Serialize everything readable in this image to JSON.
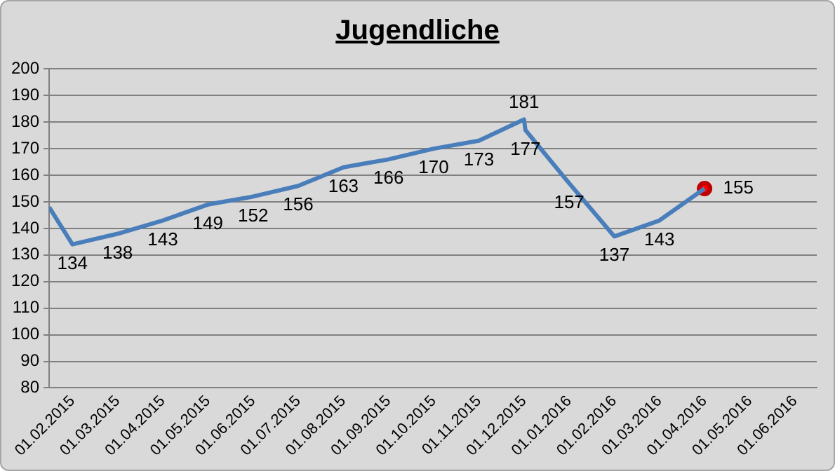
{
  "chart_data": {
    "type": "line",
    "title": "Jugendliche",
    "series": [
      {
        "color": "#4a7ebb",
        "marker": "none",
        "x": [
          "2015-01-16",
          "2015-02-01",
          "2015-03-01",
          "2015-04-01",
          "2015-05-01",
          "2015-06-01",
          "2015-07-01",
          "2015-08-01",
          "2015-09-01",
          "2015-10-01",
          "2015-11-01",
          "2015-12-01",
          "2015-12-02",
          "2016-01-01",
          "2016-02-01",
          "2016-03-01",
          "2016-04-01"
        ],
        "values": [
          148,
          134,
          138,
          143,
          149,
          152,
          156,
          163,
          166,
          170,
          173,
          181,
          177,
          157,
          137,
          143,
          155
        ],
        "value_labels": [
          null,
          "134",
          "138",
          "143",
          "149",
          "152",
          "156",
          "163",
          "166",
          "170",
          "173",
          "181",
          "177",
          "157",
          "137",
          "143",
          "155"
        ]
      },
      {
        "type": "scatter",
        "color": "#ff0000",
        "x": [
          "2016-04-01"
        ],
        "values": [
          155
        ]
      }
    ],
    "xlim": [
      "2015-01-16",
      "2016-06-16"
    ],
    "xticks": [
      {
        "value": "2015-02-01",
        "label": "01.02.2015"
      },
      {
        "value": "2015-03-01",
        "label": "01.03.2015"
      },
      {
        "value": "2015-04-01",
        "label": "01.04.2015"
      },
      {
        "value": "2015-05-01",
        "label": "01.05.2015"
      },
      {
        "value": "2015-06-01",
        "label": "01.06.2015"
      },
      {
        "value": "2015-07-01",
        "label": "01.07.2015"
      },
      {
        "value": "2015-08-01",
        "label": "01.08.2015"
      },
      {
        "value": "2015-09-01",
        "label": "01.09.2015"
      },
      {
        "value": "2015-10-01",
        "label": "01.10.2015"
      },
      {
        "value": "2015-11-01",
        "label": "01.11.2015"
      },
      {
        "value": "2015-12-01",
        "label": "01.12.2015"
      },
      {
        "value": "2016-01-01",
        "label": "01.01.2016"
      },
      {
        "value": "2016-02-01",
        "label": "01.02.2016"
      },
      {
        "value": "2016-03-01",
        "label": "01.03.2016"
      },
      {
        "value": "2016-04-01",
        "label": "01.04.2016"
      },
      {
        "value": "2016-05-01",
        "label": "01.05.2016"
      },
      {
        "value": "2016-06-01",
        "label": "01.06.2016"
      }
    ],
    "ylim": [
      80,
      200
    ],
    "yticks": [
      80,
      90,
      100,
      110,
      120,
      130,
      140,
      150,
      160,
      170,
      180,
      190,
      200
    ],
    "grid": "y",
    "legend": false
  }
}
